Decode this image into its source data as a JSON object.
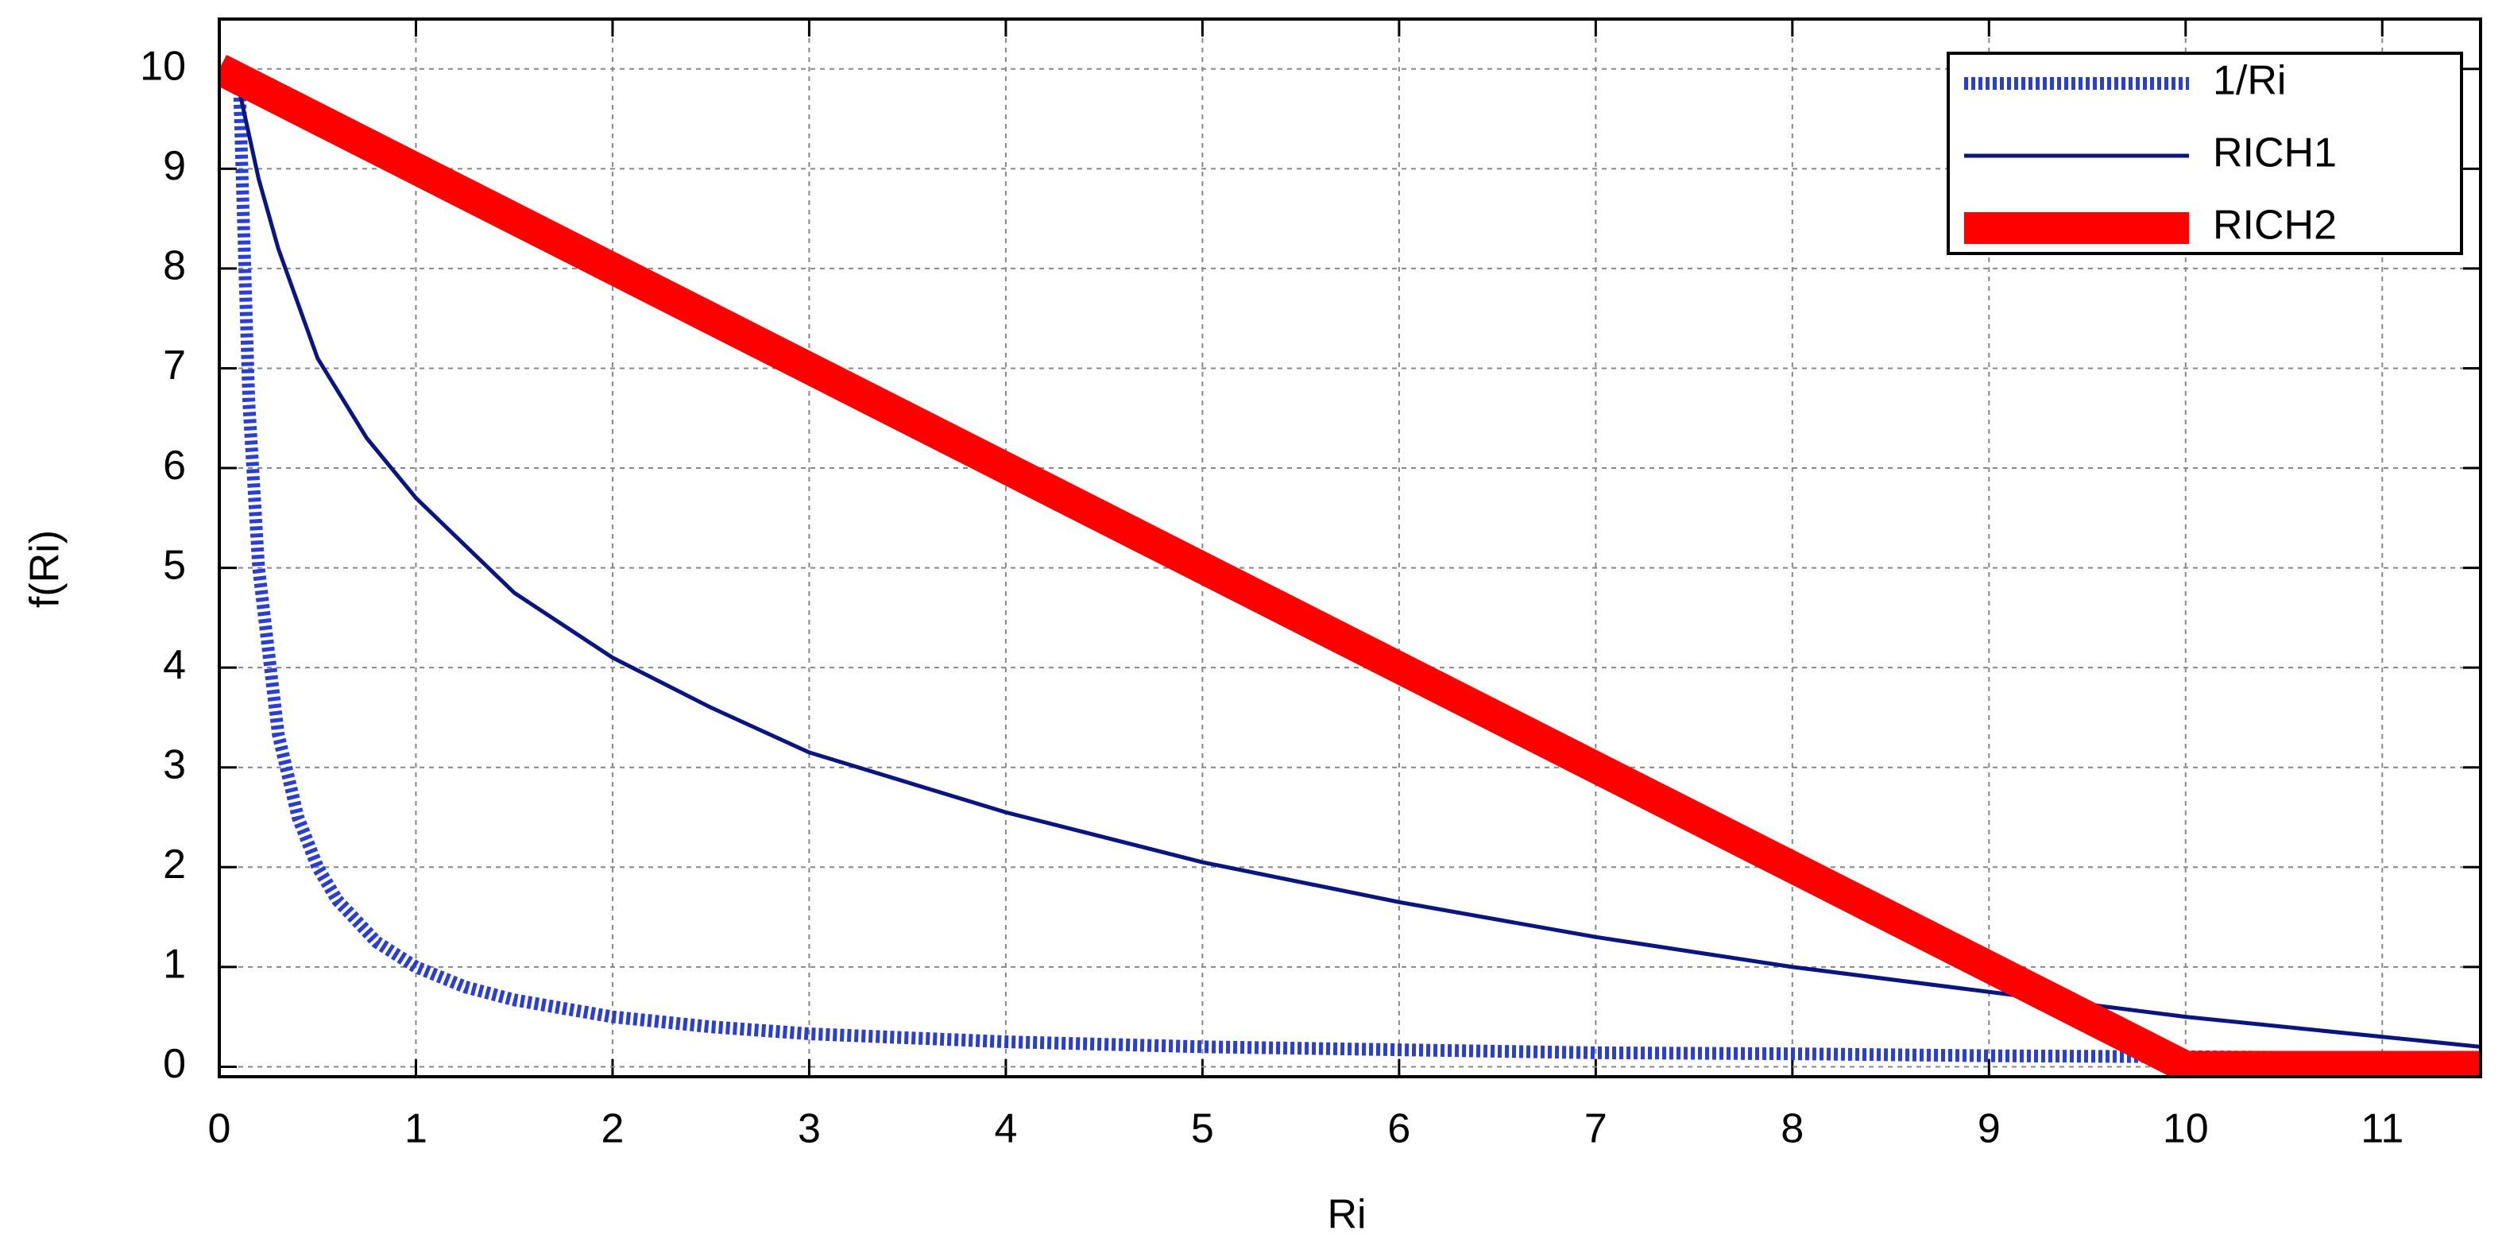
{
  "chart_data": {
    "type": "line",
    "x_label": "Ri",
    "y_label": "f(Ri)",
    "xlim": [
      0,
      11.5
    ],
    "ylim": [
      -0.1,
      10.5
    ],
    "xticks": [
      0,
      1,
      2,
      3,
      4,
      5,
      6,
      7,
      8,
      9,
      10,
      11
    ],
    "yticks": [
      0,
      1,
      2,
      3,
      4,
      5,
      6,
      7,
      8,
      9,
      10
    ],
    "grid": true,
    "legend": "upper right",
    "series": [
      {
        "name": "1/Ri",
        "color": "#2a3fd0",
        "line_style": "dotted",
        "x": [
          0.1,
          0.15,
          0.2,
          0.3,
          0.4,
          0.5,
          0.6,
          0.8,
          1,
          1.25,
          1.5,
          2,
          2.5,
          3,
          4,
          5,
          6,
          7,
          8,
          9,
          10,
          11,
          11.5
        ],
        "values": [
          10,
          6.67,
          5,
          3.33,
          2.5,
          2,
          1.67,
          1.25,
          1,
          0.8,
          0.67,
          0.5,
          0.4,
          0.33,
          0.25,
          0.2,
          0.17,
          0.14,
          0.13,
          0.11,
          0.1,
          0.09,
          0.09
        ]
      },
      {
        "name": "RICH1",
        "color": "#0a1580",
        "line_style": "solid",
        "x": [
          0,
          0.1,
          0.2,
          0.3,
          0.5,
          0.75,
          1,
          1.5,
          2,
          2.5,
          3,
          4,
          5,
          6,
          7,
          8,
          9,
          10,
          11,
          11.5
        ],
        "values": [
          10,
          9.8,
          8.9,
          8.2,
          7.1,
          6.3,
          5.7,
          4.75,
          4.1,
          3.6,
          3.15,
          2.55,
          2.05,
          1.65,
          1.3,
          1.0,
          0.75,
          0.5,
          0.3,
          0.2
        ]
      },
      {
        "name": "RICH2",
        "color": "#ff0000",
        "line_style": "solid",
        "x": [
          0,
          10,
          11.5
        ],
        "values": [
          10,
          0,
          0
        ]
      }
    ]
  }
}
